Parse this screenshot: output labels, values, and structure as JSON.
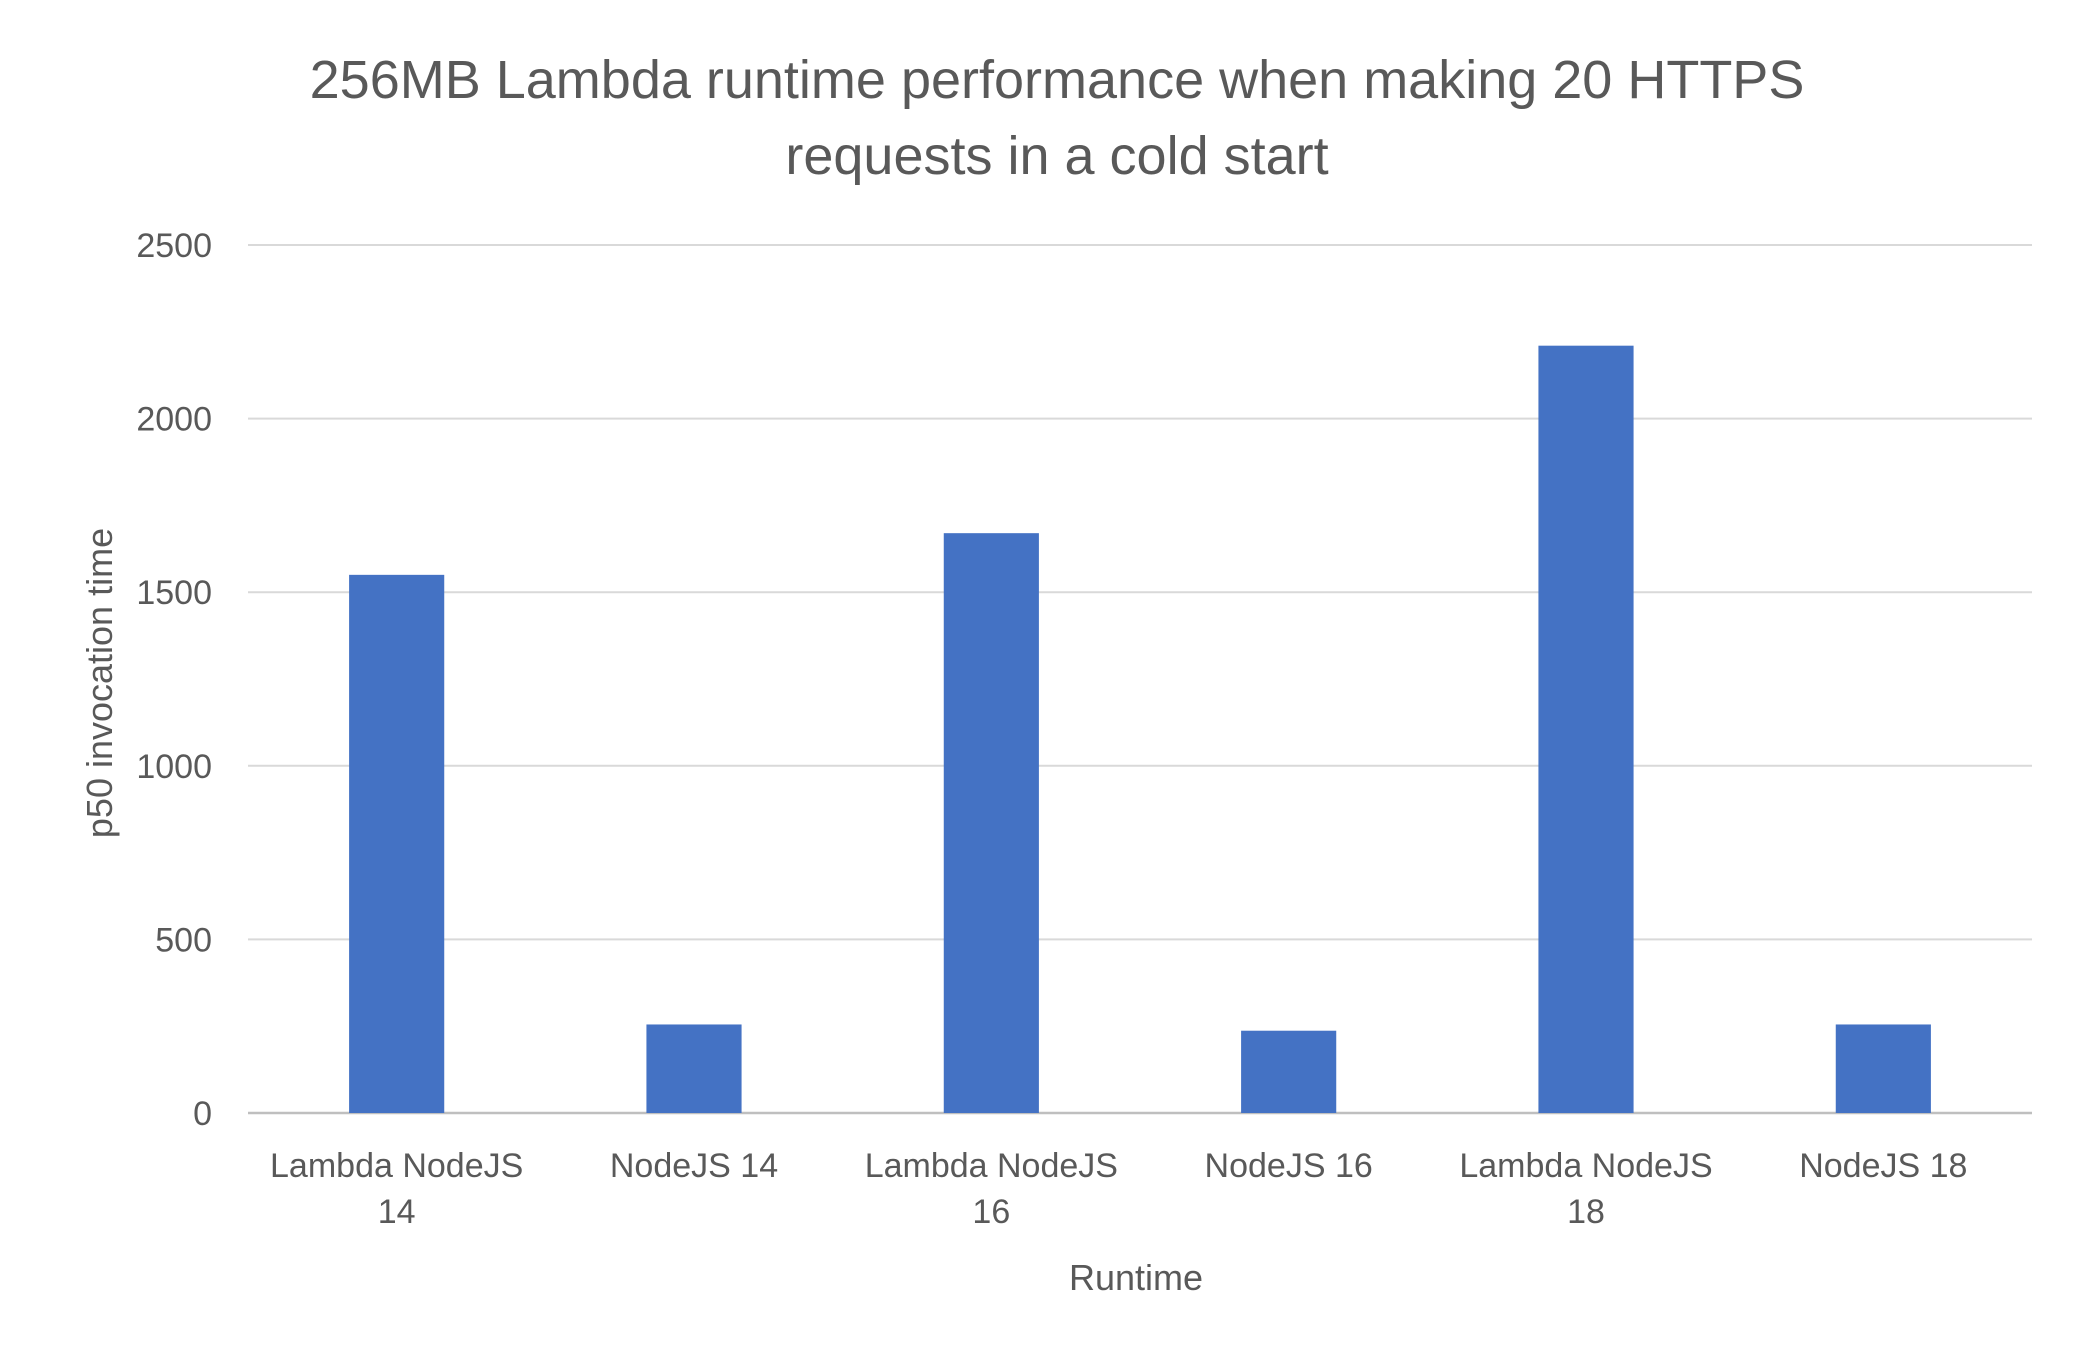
{
  "chart_data": {
    "type": "bar",
    "title_lines": [
      "256MB Lambda runtime performance when making 20 HTTPS",
      "requests in a cold start"
    ],
    "xlabel": "Runtime",
    "ylabel": "p50 invocation time",
    "categories": [
      [
        "Lambda NodeJS",
        "14"
      ],
      [
        "NodeJS 14"
      ],
      [
        "Lambda NodeJS",
        "16"
      ],
      [
        "NodeJS 16"
      ],
      [
        "Lambda NodeJS",
        "18"
      ],
      [
        "NodeJS 18"
      ]
    ],
    "values": [
      1550,
      255,
      1670,
      237,
      2210,
      255
    ],
    "ylim": [
      0,
      2500
    ],
    "yticks": [
      0,
      500,
      1000,
      1500,
      2000,
      2500
    ],
    "grid": true,
    "bar_color": "#4472C4"
  }
}
